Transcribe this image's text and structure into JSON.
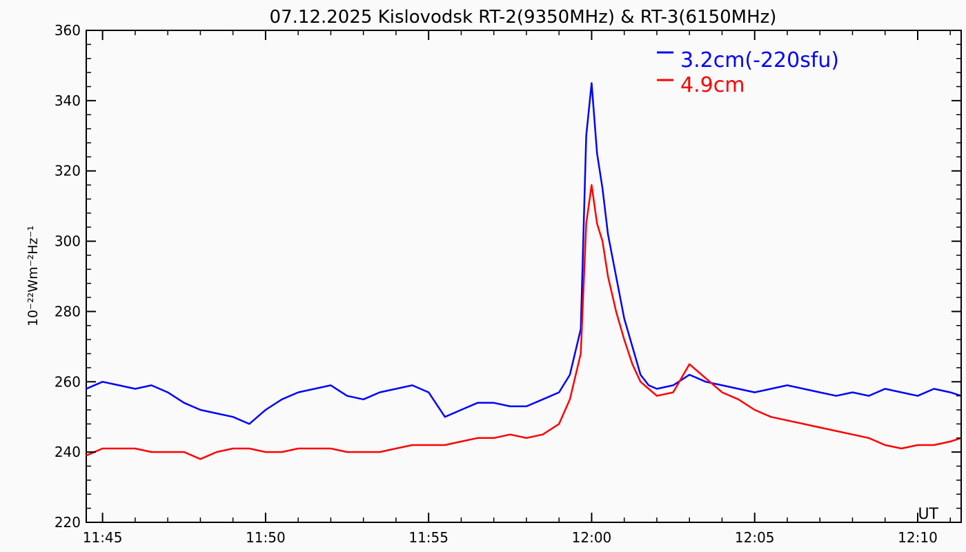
{
  "chart_data": {
    "type": "line",
    "title": "07.12.2025 Kislovodsk RT-2(9350MHz) & RT-3(6150MHz)",
    "xlabel": "UT",
    "ylabel": "10⁻²²Wm⁻²Hz⁻¹",
    "x_unit": "UT",
    "xlim": [
      "11:44:30",
      "12:11:20"
    ],
    "ylim": [
      220,
      360
    ],
    "x_ticks": [
      "11:45",
      "11:50",
      "11:55",
      "12:00",
      "12:05",
      "12:10"
    ],
    "y_ticks": [
      220,
      240,
      260,
      280,
      300,
      320,
      340,
      360
    ],
    "grid": false,
    "legend_position": "top-right",
    "series": [
      {
        "name": "3.2cm(-220sfu)",
        "color": "#0000ff",
        "x": [
          "11:44:30",
          "11:45",
          "11:45:30",
          "11:46",
          "11:46:30",
          "11:47",
          "11:47:30",
          "11:48",
          "11:48:30",
          "11:49",
          "11:49:30",
          "11:50",
          "11:50:30",
          "11:51",
          "11:51:30",
          "11:52",
          "11:52:30",
          "11:53",
          "11:53:30",
          "11:54",
          "11:54:30",
          "11:55",
          "11:55:30",
          "11:56",
          "11:56:30",
          "11:57",
          "11:57:30",
          "11:58",
          "11:58:30",
          "11:59",
          "11:59:20",
          "11:59:40",
          "11:59:50",
          "12:00",
          "12:00:10",
          "12:00:20",
          "12:00:30",
          "12:00:45",
          "12:01",
          "12:01:15",
          "12:01:30",
          "12:01:45",
          "12:02",
          "12:02:30",
          "12:03",
          "12:03:30",
          "12:04",
          "12:04:30",
          "12:05",
          "12:05:30",
          "12:06",
          "12:06:30",
          "12:07",
          "12:07:30",
          "12:08",
          "12:08:30",
          "12:09",
          "12:09:30",
          "12:10",
          "12:10:30",
          "12:11",
          "12:11:20"
        ],
        "values": [
          258,
          260,
          259,
          258,
          259,
          257,
          254,
          252,
          251,
          250,
          248,
          252,
          255,
          257,
          258,
          259,
          256,
          255,
          257,
          258,
          259,
          257,
          250,
          252,
          254,
          254,
          253,
          253,
          255,
          257,
          262,
          275,
          330,
          345,
          325,
          315,
          302,
          290,
          278,
          270,
          262,
          259,
          258,
          259,
          262,
          260,
          259,
          258,
          257,
          258,
          259,
          258,
          257,
          256,
          257,
          256,
          258,
          257,
          256,
          258,
          257,
          256
        ]
      },
      {
        "name": "4.9cm",
        "color": "#ff0000",
        "x": [
          "11:44:30",
          "11:45",
          "11:45:30",
          "11:46",
          "11:46:30",
          "11:47",
          "11:47:30",
          "11:48",
          "11:48:30",
          "11:49",
          "11:49:30",
          "11:50",
          "11:50:30",
          "11:51",
          "11:51:30",
          "11:52",
          "11:52:30",
          "11:53",
          "11:53:30",
          "11:54",
          "11:54:30",
          "11:55",
          "11:55:30",
          "11:56",
          "11:56:30",
          "11:57",
          "11:57:30",
          "11:58",
          "11:58:30",
          "11:59",
          "11:59:20",
          "11:59:40",
          "11:59:50",
          "12:00",
          "12:00:10",
          "12:00:20",
          "12:00:30",
          "12:00:45",
          "12:01",
          "12:01:15",
          "12:01:30",
          "12:01:45",
          "12:02",
          "12:02:30",
          "12:03",
          "12:03:30",
          "12:04",
          "12:04:30",
          "12:05",
          "12:05:30",
          "12:06",
          "12:06:30",
          "12:07",
          "12:07:30",
          "12:08",
          "12:08:30",
          "12:09",
          "12:09:30",
          "12:10",
          "12:10:30",
          "12:11",
          "12:11:20"
        ],
        "values": [
          239,
          241,
          241,
          241,
          240,
          240,
          240,
          238,
          240,
          241,
          241,
          240,
          240,
          241,
          241,
          241,
          240,
          240,
          240,
          241,
          242,
          242,
          242,
          243,
          244,
          244,
          245,
          244,
          245,
          248,
          255,
          268,
          305,
          316,
          305,
          300,
          290,
          280,
          272,
          265,
          260,
          258,
          256,
          257,
          265,
          261,
          257,
          255,
          252,
          250,
          249,
          248,
          247,
          246,
          245,
          244,
          242,
          241,
          242,
          242,
          243,
          244
        ]
      }
    ]
  }
}
